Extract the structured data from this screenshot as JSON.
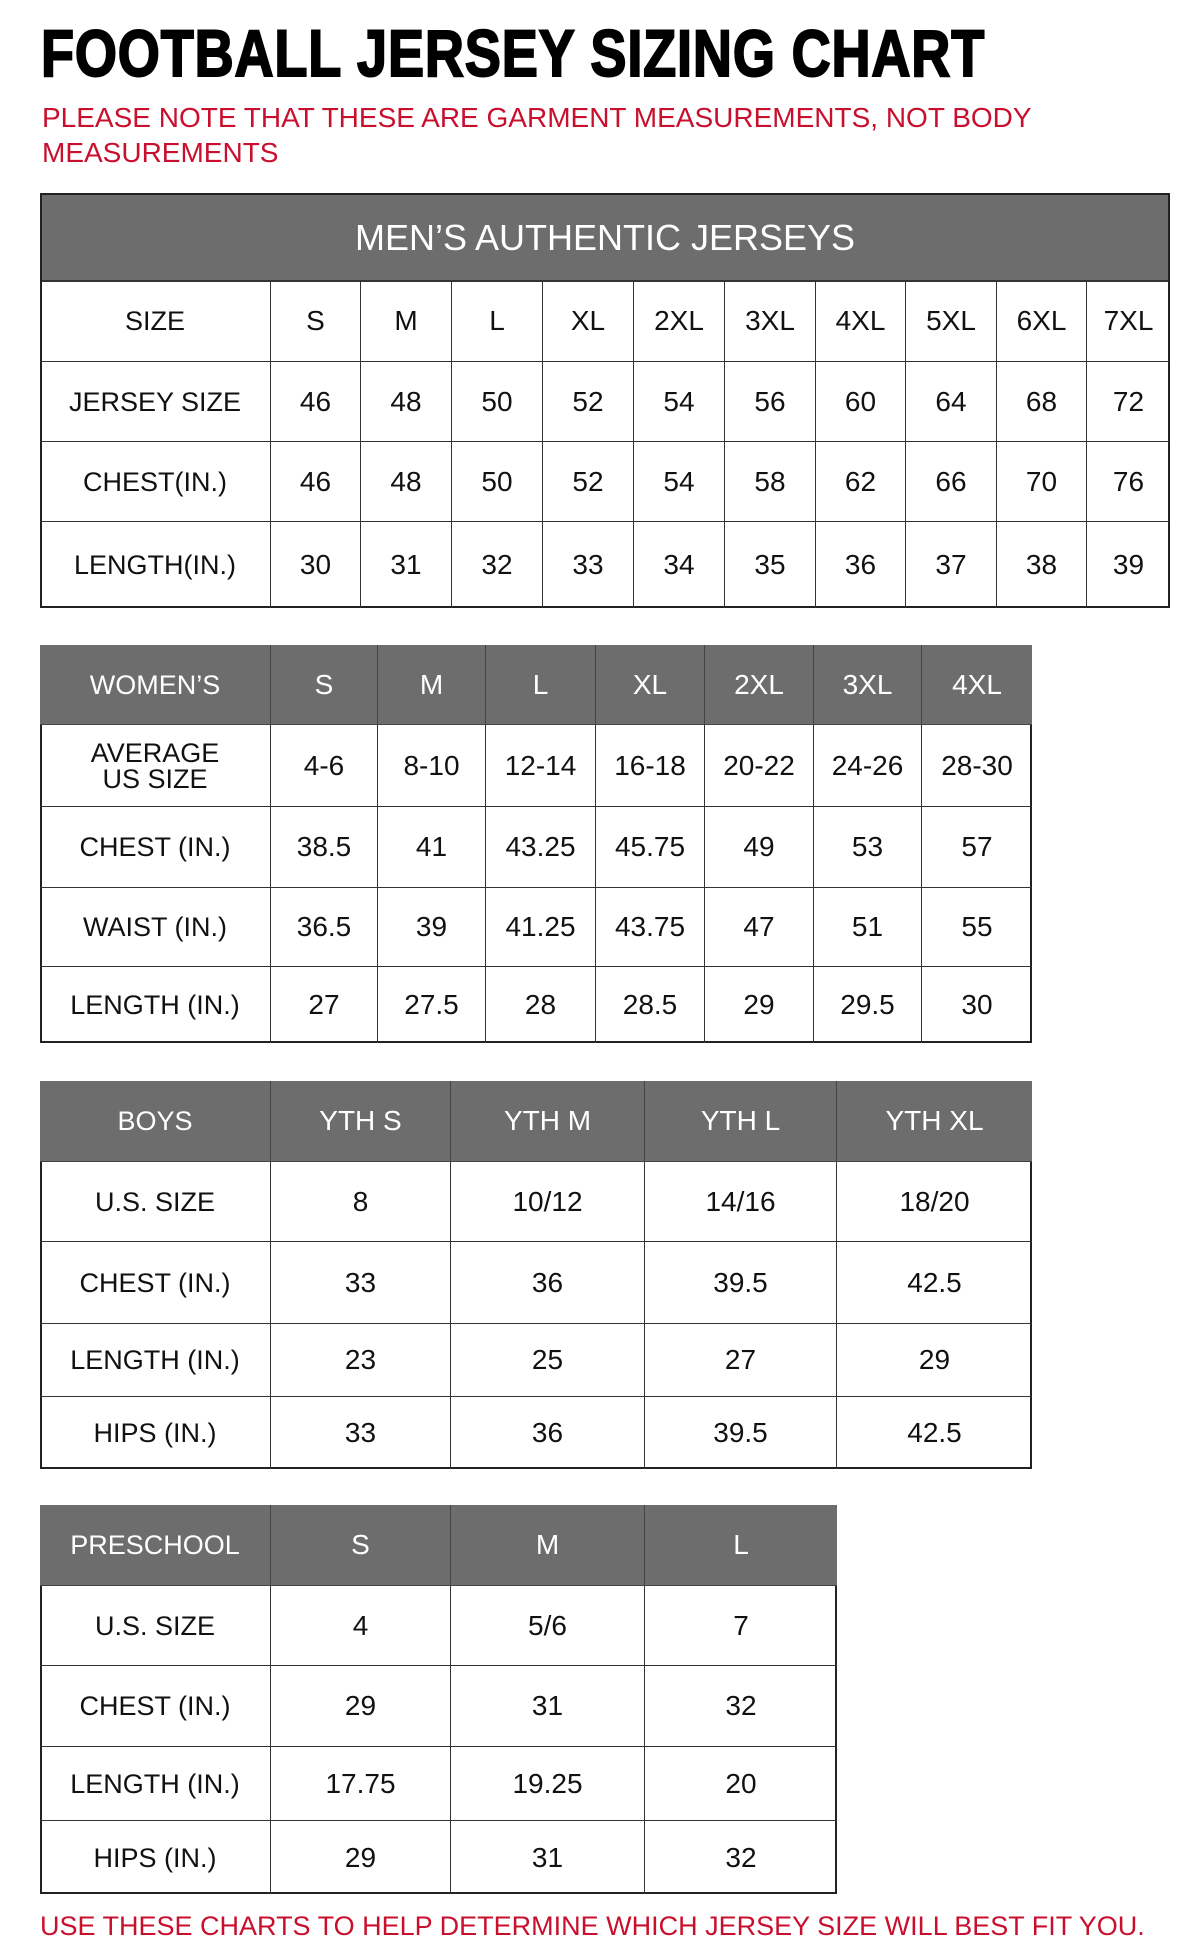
{
  "title": "FOOTBALL JERSEY SIZING CHART",
  "note": "PLEASE NOTE THAT THESE ARE GARMENT MEASUREMENTS, NOT BODY MEASUREMENTS",
  "footer": "USE THESE CHARTS TO HELP DETERMINE WHICH JERSEY SIZE WILL BEST FIT YOU.",
  "colors": {
    "header_gray": "#6d6d6d",
    "accent_red": "#c8102e"
  },
  "mens": {
    "banner": "MEN’S AUTHENTIC JERSEYS",
    "header": [
      "SIZE",
      "S",
      "M",
      "L",
      "XL",
      "2XL",
      "3XL",
      "4XL",
      "5XL",
      "6XL",
      "7XL"
    ],
    "rows": [
      [
        "JERSEY SIZE",
        "46",
        "48",
        "50",
        "52",
        "54",
        "56",
        "60",
        "64",
        "68",
        "72"
      ],
      [
        "CHEST(IN.)",
        "46",
        "48",
        "50",
        "52",
        "54",
        "58",
        "62",
        "66",
        "70",
        "76"
      ],
      [
        "LENGTH(IN.)",
        "30",
        "31",
        "32",
        "33",
        "34",
        "35",
        "36",
        "37",
        "38",
        "39"
      ]
    ]
  },
  "womens": {
    "header": [
      "WOMEN’S",
      "S",
      "M",
      "L",
      "XL",
      "2XL",
      "3XL",
      "4XL"
    ],
    "rows": [
      [
        "AVERAGE US SIZE",
        "4-6",
        "8-10",
        "12-14",
        "16-18",
        "20-22",
        "24-26",
        "28-30"
      ],
      [
        "CHEST (IN.)",
        "38.5",
        "41",
        "43.25",
        "45.75",
        "49",
        "53",
        "57"
      ],
      [
        "WAIST (IN.)",
        "36.5",
        "39",
        "41.25",
        "43.75",
        "47",
        "51",
        "55"
      ],
      [
        "LENGTH (IN.)",
        "27",
        "27.5",
        "28",
        "28.5",
        "29",
        "29.5",
        "30"
      ]
    ]
  },
  "boys": {
    "header": [
      "BOYS",
      "YTH S",
      "YTH M",
      "YTH L",
      "YTH XL"
    ],
    "rows": [
      [
        "U.S. SIZE",
        "8",
        "10/12",
        "14/16",
        "18/20"
      ],
      [
        "CHEST (IN.)",
        "33",
        "36",
        "39.5",
        "42.5"
      ],
      [
        "LENGTH (IN.)",
        "23",
        "25",
        "27",
        "29"
      ],
      [
        "HIPS (IN.)",
        "33",
        "36",
        "39.5",
        "42.5"
      ]
    ]
  },
  "preschool": {
    "header": [
      "PRESCHOOL",
      "S",
      "M",
      "L"
    ],
    "rows": [
      [
        "U.S. SIZE",
        "4",
        "5/6",
        "7"
      ],
      [
        "CHEST (IN.)",
        "29",
        "31",
        "32"
      ],
      [
        "LENGTH (IN.)",
        "17.75",
        "19.25",
        "20"
      ],
      [
        "HIPS (IN.)",
        "29",
        "31",
        "32"
      ]
    ]
  }
}
